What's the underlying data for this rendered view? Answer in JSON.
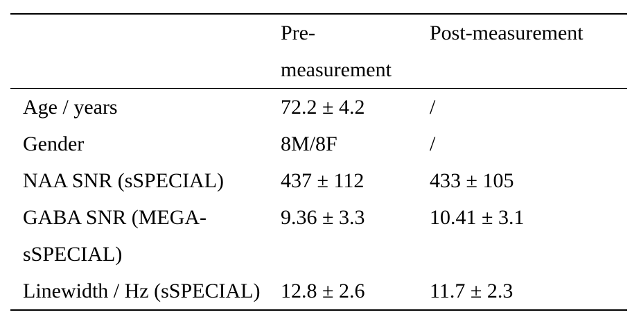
{
  "table": {
    "columns": [
      "",
      "Pre-measurement",
      "Post-measurement"
    ],
    "rows": [
      {
        "label": "Age / years",
        "pre": "72.2 ± 4.2",
        "post": "/"
      },
      {
        "label": "Gender",
        "pre": "8M/8F",
        "post": "/"
      },
      {
        "label": "NAA SNR (sSPECIAL)",
        "pre": "437 ± 112",
        "post": "433 ± 105"
      },
      {
        "label": "GABA SNR (MEGA-sSPECIAL)",
        "pre": "9.36 ± 3.3",
        "post": "10.41 ± 3.1"
      },
      {
        "label": "Linewidth / Hz (sSPECIAL)",
        "pre": "12.8 ± 2.6",
        "post": "11.7 ± 2.3"
      }
    ]
  }
}
